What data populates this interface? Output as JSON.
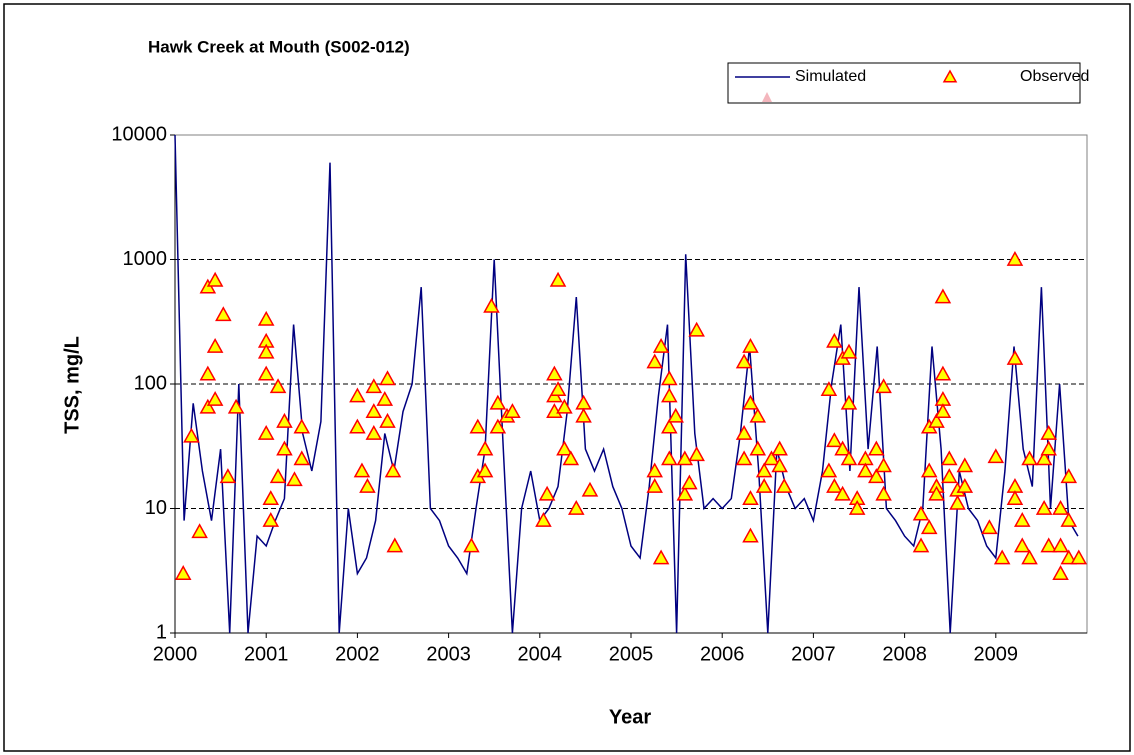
{
  "chart_data": {
    "type": "line",
    "title": "Hawk Creek at Mouth (S002-012)",
    "x_label": "Year",
    "y_label": "TSS, mg/L",
    "yscale": "log",
    "ylim": [
      1,
      10000
    ],
    "yticks": [
      1,
      10,
      100,
      1000,
      10000
    ],
    "xlim": [
      2000,
      2010
    ],
    "xticks": [
      2000,
      2001,
      2002,
      2003,
      2004,
      2005,
      2006,
      2007,
      2008,
      2009
    ],
    "grid": true,
    "legend": "top right",
    "series": [
      {
        "name": "Simulated",
        "type": "line",
        "color": "#000080",
        "x": [
          2000,
          2000.1,
          2000.2,
          2000.3,
          2000.4,
          2000.5,
          2000.6,
          2000.7,
          2000.8,
          2000.9,
          2001,
          2001.1,
          2001.2,
          2001.3,
          2001.4,
          2001.5,
          2001.6,
          2001.7,
          2001.8,
          2001.9,
          2002,
          2002.1,
          2002.2,
          2002.3,
          2002.4,
          2002.5,
          2002.6,
          2002.7,
          2002.8,
          2002.9,
          2003,
          2003.1,
          2003.2,
          2003.3,
          2003.4,
          2003.5,
          2003.6,
          2003.7,
          2003.8,
          2003.9,
          2004,
          2004.1,
          2004.2,
          2004.3,
          2004.4,
          2004.5,
          2004.6,
          2004.7,
          2004.8,
          2004.9,
          2005,
          2005.1,
          2005.2,
          2005.3,
          2005.4,
          2005.5,
          2005.6,
          2005.7,
          2005.8,
          2005.9,
          2006,
          2006.1,
          2006.2,
          2006.3,
          2006.4,
          2006.5,
          2006.6,
          2006.7,
          2006.8,
          2006.9,
          2007,
          2007.1,
          2007.2,
          2007.3,
          2007.4,
          2007.5,
          2007.6,
          2007.7,
          2007.8,
          2007.9,
          2008,
          2008.1,
          2008.2,
          2008.3,
          2008.4,
          2008.5,
          2008.6,
          2008.7,
          2008.8,
          2008.9,
          2009,
          2009.1,
          2009.2,
          2009.3,
          2009.4,
          2009.5,
          2009.6,
          2009.7,
          2009.8,
          2009.9
        ],
        "values": [
          10000,
          8,
          70,
          20,
          8,
          30,
          1,
          100,
          1,
          6,
          5,
          8,
          12,
          300,
          40,
          20,
          50,
          6000,
          1,
          10,
          3,
          4,
          8,
          40,
          20,
          60,
          100,
          600,
          10,
          8,
          5,
          4,
          3,
          10,
          30,
          1000,
          30,
          1,
          10,
          20,
          8,
          10,
          15,
          60,
          500,
          30,
          20,
          30,
          15,
          10,
          5,
          4,
          15,
          80,
          300,
          1,
          1100,
          40,
          10,
          12,
          10,
          12,
          40,
          200,
          20,
          1,
          30,
          15,
          10,
          12,
          8,
          20,
          100,
          300,
          20,
          600,
          30,
          200,
          10,
          8,
          6,
          5,
          10,
          200,
          30,
          1,
          20,
          10,
          8,
          5,
          4,
          20,
          200,
          30,
          15,
          600,
          10,
          100,
          8,
          6
        ]
      },
      {
        "name": "Observed",
        "type": "scatter",
        "color": "#ffff00",
        "edge_color": "#ff0000",
        "x": [
          2000.09,
          2000.18,
          2000.27,
          2000.36,
          2000.36,
          2000.36,
          2000.44,
          2000.44,
          2000.44,
          2000.53,
          2000.58,
          2000.67,
          2001.0,
          2001.0,
          2001.0,
          2001.0,
          2001.0,
          2001.05,
          2001.05,
          2001.13,
          2001.13,
          2001.2,
          2001.2,
          2001.31,
          2001.39,
          2001.39,
          2002.0,
          2002.0,
          2002.05,
          2002.11,
          2002.18,
          2002.18,
          2002.18,
          2002.3,
          2002.33,
          2002.33,
          2002.39,
          2002.41,
          2003.25,
          2003.32,
          2003.32,
          2003.4,
          2003.4,
          2003.47,
          2003.54,
          2003.54,
          2003.64,
          2003.7,
          2004.04,
          2004.08,
          2004.16,
          2004.16,
          2004.16,
          2004.2,
          2004.2,
          2004.27,
          2004.27,
          2004.34,
          2004.4,
          2004.48,
          2004.48,
          2004.55,
          2005.26,
          2005.26,
          2005.26,
          2005.33,
          2005.33,
          2005.42,
          2005.42,
          2005.42,
          2005.42,
          2005.49,
          2005.59,
          2005.59,
          2005.64,
          2005.72,
          2005.72,
          2006.24,
          2006.24,
          2006.24,
          2006.31,
          2006.31,
          2006.31,
          2006.31,
          2006.39,
          2006.39,
          2006.46,
          2006.46,
          2006.54,
          2006.63,
          2006.63,
          2006.68,
          2007.17,
          2007.17,
          2007.23,
          2007.23,
          2007.23,
          2007.32,
          2007.32,
          2007.32,
          2007.39,
          2007.39,
          2007.39,
          2007.48,
          2007.48,
          2007.57,
          2007.57,
          2007.69,
          2007.69,
          2007.77,
          2007.77,
          2007.77,
          2008.18,
          2008.18,
          2008.27,
          2008.27,
          2008.27,
          2008.35,
          2008.35,
          2008.35,
          2008.42,
          2008.42,
          2008.42,
          2008.42,
          2008.49,
          2008.49,
          2008.58,
          2008.58,
          2008.66,
          2008.66,
          2008.93,
          2009.0,
          2009.07,
          2009.21,
          2009.21,
          2009.21,
          2009.21,
          2009.29,
          2009.29,
          2009.37,
          2009.37,
          2009.53,
          2009.53,
          2009.58,
          2009.58,
          2009.58,
          2009.71,
          2009.71,
          2009.71,
          2009.8,
          2009.8,
          2009.8,
          2009.91
        ],
        "values": [
          3,
          38,
          6.5,
          600,
          65,
          120,
          680,
          200,
          75,
          360,
          18,
          65,
          330,
          220,
          180,
          120,
          40,
          12,
          8,
          95,
          18,
          50,
          30,
          17,
          45,
          25,
          80,
          45,
          20,
          15,
          95,
          60,
          40,
          75,
          110,
          50,
          20,
          5,
          5,
          45,
          18,
          30,
          20,
          420,
          70,
          45,
          55,
          60,
          8,
          13,
          120,
          80,
          60,
          680,
          90,
          65,
          30,
          25,
          10,
          70,
          55,
          14,
          150,
          20,
          15,
          200,
          4,
          110,
          80,
          45,
          25,
          55,
          13,
          25,
          16,
          270,
          27,
          150,
          40,
          25,
          200,
          70,
          6,
          12,
          55,
          30,
          20,
          15,
          25,
          30,
          22,
          15,
          90,
          20,
          220,
          35,
          15,
          160,
          30,
          13,
          180,
          70,
          25,
          12,
          10,
          25,
          20,
          30,
          18,
          95,
          22,
          13,
          9,
          5,
          45,
          20,
          7,
          50,
          15,
          13,
          500,
          120,
          75,
          60,
          25,
          18,
          11,
          14,
          22,
          15,
          7,
          26,
          4,
          1000,
          160,
          15,
          12,
          8,
          5,
          4,
          25,
          25,
          10,
          40,
          30,
          5,
          10,
          5,
          3,
          18,
          8,
          4,
          4
        ]
      }
    ]
  }
}
